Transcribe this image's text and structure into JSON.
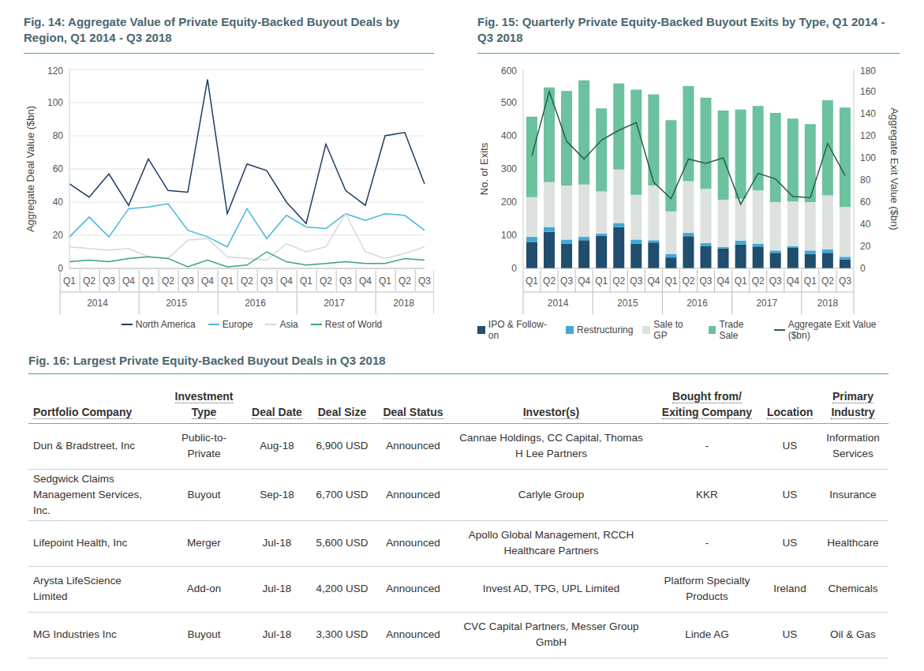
{
  "chart_data": [
    {
      "type": "line",
      "title": "Fig. 14: Aggregate Value of Private Equity-Backed Buyout Deals by Region, Q1 2014 - Q3 2018",
      "y_label": "Aggregate Deal Value ($bn)",
      "categories": [
        "Q1",
        "Q2",
        "Q3",
        "Q4",
        "Q1",
        "Q2",
        "Q3",
        "Q4",
        "Q1",
        "Q2",
        "Q3",
        "Q4",
        "Q1",
        "Q2",
        "Q3",
        "Q4",
        "Q1",
        "Q2",
        "Q3"
      ],
      "x_groups": [
        {
          "label": "2014",
          "size": 4
        },
        {
          "label": "2015",
          "size": 4
        },
        {
          "label": "2016",
          "size": 4
        },
        {
          "label": "2017",
          "size": 4
        },
        {
          "label": "2018",
          "size": 3
        }
      ],
      "series": [
        {
          "name": "North America",
          "color": "#1d3c64",
          "values": [
            51,
            43,
            57,
            38,
            66,
            47,
            46,
            114,
            33,
            63,
            59,
            40,
            27,
            75,
            47,
            38,
            80,
            82,
            51
          ]
        },
        {
          "name": "Europe",
          "color": "#49b6de",
          "values": [
            19,
            31,
            19,
            36,
            37,
            39,
            23,
            19,
            13,
            36,
            18,
            32,
            25,
            24,
            33,
            29,
            33,
            32,
            23
          ]
        },
        {
          "name": "Asia",
          "color": "#d6d8d8",
          "values": [
            13,
            12,
            11,
            12,
            7,
            6,
            17,
            18,
            7,
            6,
            5,
            15,
            10,
            13,
            33,
            10,
            6,
            9,
            13
          ]
        },
        {
          "name": "Rest of World",
          "color": "#3aa57a",
          "values": [
            4,
            5,
            4,
            6,
            7,
            6,
            1,
            5,
            1,
            2,
            10,
            4,
            2,
            3,
            4,
            3,
            3,
            6,
            5
          ]
        }
      ],
      "ylim": [
        0,
        120
      ],
      "yticks": [
        0,
        20,
        40,
        60,
        80,
        100,
        120
      ],
      "grid": true,
      "legend": "bottom"
    },
    {
      "type": "bar",
      "title": "Fig. 15: Quarterly Private Equity-Backed Buyout Exits by Type, Q1 2014 - Q3 2018",
      "y_label": "No. of Exits",
      "y2_label": "Aggregate Exit Value ($bn)",
      "categories": [
        "Q1",
        "Q2",
        "Q3",
        "Q4",
        "Q1",
        "Q2",
        "Q3",
        "Q4",
        "Q1",
        "Q2",
        "Q3",
        "Q4",
        "Q1",
        "Q2",
        "Q3",
        "Q4",
        "Q1",
        "Q2",
        "Q3"
      ],
      "x_groups": [
        {
          "label": "2014",
          "size": 4
        },
        {
          "label": "2015",
          "size": 4
        },
        {
          "label": "2016",
          "size": 4
        },
        {
          "label": "2017",
          "size": 4
        },
        {
          "label": "2018",
          "size": 3
        }
      ],
      "series": [
        {
          "name": "IPO & Follow-on",
          "type": "bar",
          "color": "#1f4e6e",
          "values": [
            80,
            110,
            75,
            85,
            98,
            125,
            75,
            78,
            33,
            97,
            68,
            60,
            72,
            66,
            47,
            62,
            44,
            47,
            27
          ]
        },
        {
          "name": "Restructuring",
          "type": "bar",
          "color": "#3fa9d6",
          "values": [
            15,
            15,
            12,
            10,
            7,
            12,
            12,
            7,
            10,
            10,
            8,
            5,
            12,
            8,
            7,
            5,
            10,
            10,
            8
          ]
        },
        {
          "name": "Sale to GP",
          "type": "bar",
          "color": "#dde2df",
          "values": [
            120,
            135,
            163,
            158,
            127,
            161,
            135,
            165,
            129,
            156,
            164,
            142,
            126,
            161,
            146,
            135,
            146,
            163,
            150
          ]
        },
        {
          "name": "Trade Sale",
          "type": "bar",
          "color": "#6cc19e",
          "values": [
            243,
            286,
            285,
            314,
            251,
            260,
            317,
            275,
            275,
            287,
            275,
            269,
            269,
            255,
            269,
            250,
            235,
            287,
            300
          ]
        },
        {
          "name": "Aggregate Exit Value ($bn)",
          "type": "line",
          "axis": "y2",
          "color": "#2b5f4a",
          "values": [
            102,
            160,
            115,
            99,
            116,
            125,
            132,
            78,
            63,
            99,
            95,
            100,
            58,
            86,
            81,
            65,
            64,
            113,
            84
          ]
        }
      ],
      "ylim": [
        0,
        600
      ],
      "yticks": [
        0,
        100,
        200,
        300,
        400,
        500,
        600
      ],
      "y2lim": [
        0,
        180
      ],
      "y2ticks": [
        0,
        20,
        40,
        60,
        80,
        100,
        120,
        140,
        160,
        180
      ],
      "stacked": true,
      "grid": false,
      "legend": "bottom"
    }
  ],
  "table": {
    "title": "Fig. 16: Largest Private Equity-Backed Buyout Deals in Q3 2018",
    "columns": [
      "Portfolio Company",
      "Investment Type",
      "Deal Date",
      "Deal Size",
      "Deal Status",
      "Investor(s)",
      "Bought from/ Exiting Company",
      "Location",
      "Primary Industry"
    ],
    "rows": [
      [
        "Dun & Bradstreet, Inc",
        "Public-to-Private",
        "Aug-18",
        "6,900 USD",
        "Announced",
        "Cannae Holdings, CC Capital, Thomas H Lee Partners",
        "-",
        "US",
        "Information Services"
      ],
      [
        "Sedgwick Claims Management Services, Inc.",
        "Buyout",
        "Sep-18",
        "6,700 USD",
        "Announced",
        "Carlyle Group",
        "KKR",
        "US",
        "Insurance"
      ],
      [
        "Lifepoint Health, Inc",
        "Merger",
        "Jul-18",
        "5,600 USD",
        "Announced",
        "Apollo Global Management, RCCH Healthcare Partners",
        "-",
        "US",
        "Healthcare"
      ],
      [
        "Arysta LifeScience Limited",
        "Add-on",
        "Jul-18",
        "4,200 USD",
        "Announced",
        "Invest AD, TPG, UPL Limited",
        "Platform Specialty Products",
        "Ireland",
        "Chemicals"
      ],
      [
        "MG Industries Inc",
        "Buyout",
        "Jul-18",
        "3,300 USD",
        "Announced",
        "CVC Capital Partners, Messer Group GmbH",
        "Linde AG",
        "US",
        "Oil & Gas"
      ]
    ]
  }
}
